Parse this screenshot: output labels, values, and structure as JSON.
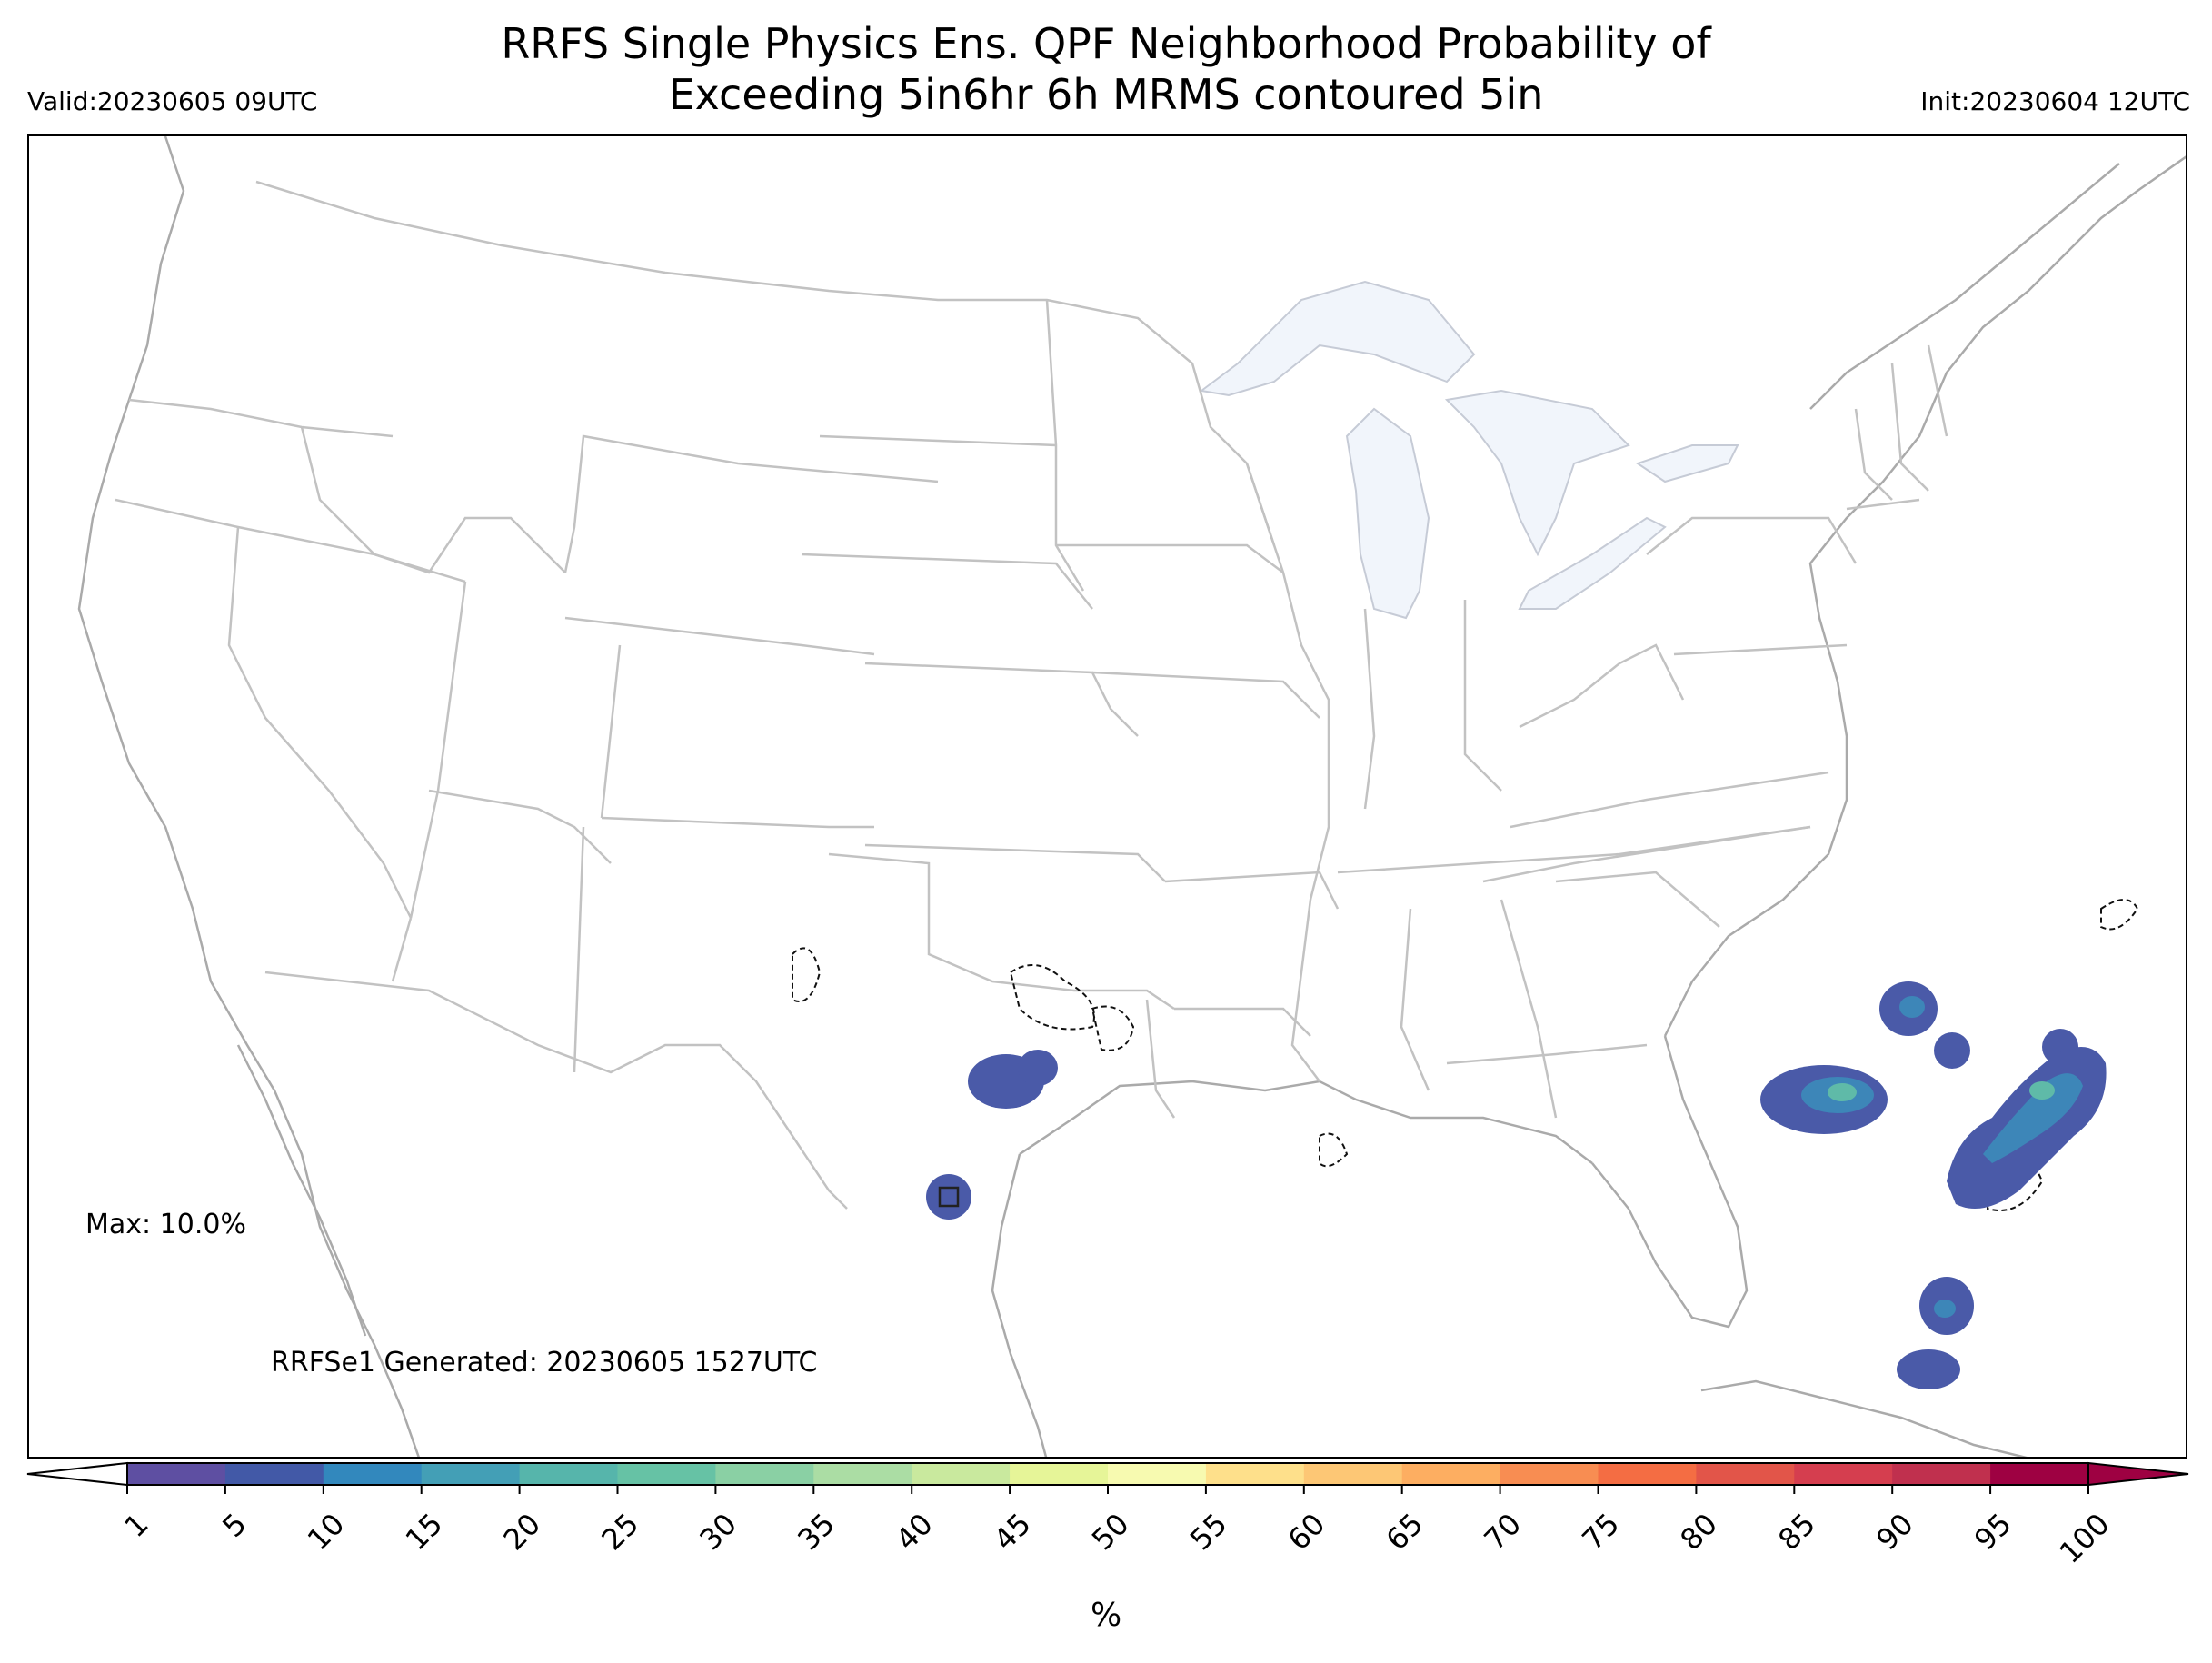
{
  "title": {
    "line1": "RRFS Single Physics Ens. QPF Neighborhood Probability of",
    "line2": "Exceeding 5in6hr 6h MRMS contoured 5in"
  },
  "valid_label": "Valid:20230605 09UTC",
  "init_label": "Init:20230604 12UTC",
  "max_label": "Max: 10.0%",
  "generated_label": "RRFSe1 Generated: 20230605 1527UTC",
  "colorbar": {
    "ticks": [
      "1",
      "5",
      "10",
      "15",
      "20",
      "25",
      "30",
      "35",
      "40",
      "45",
      "50",
      "55",
      "60",
      "65",
      "70",
      "75",
      "80",
      "85",
      "90",
      "95",
      "100"
    ],
    "unit": "%",
    "colors": [
      "#5e4fa2",
      "#4259a7",
      "#3288bd",
      "#439fb6",
      "#56b5ab",
      "#66c2a5",
      "#8ad0a4",
      "#abdda4",
      "#c9e99e",
      "#e6f598",
      "#f7fab0",
      "#fee08b",
      "#fdc775",
      "#fdae61",
      "#f88d52",
      "#f46d43",
      "#e25549",
      "#d53e4f",
      "#c0304e",
      "#9e0142"
    ],
    "extend_low_color": "#ffffff",
    "extend_high_color": "#9e0142"
  },
  "map_colors": {
    "state_lines": "#bdbdbd",
    "coastline": "#aaaaaa",
    "lakes": "#f1f5fb",
    "prob_low": "#4a5aa8",
    "prob_mid": "#3d86b8",
    "prob_high": "#5fbaa8"
  }
}
